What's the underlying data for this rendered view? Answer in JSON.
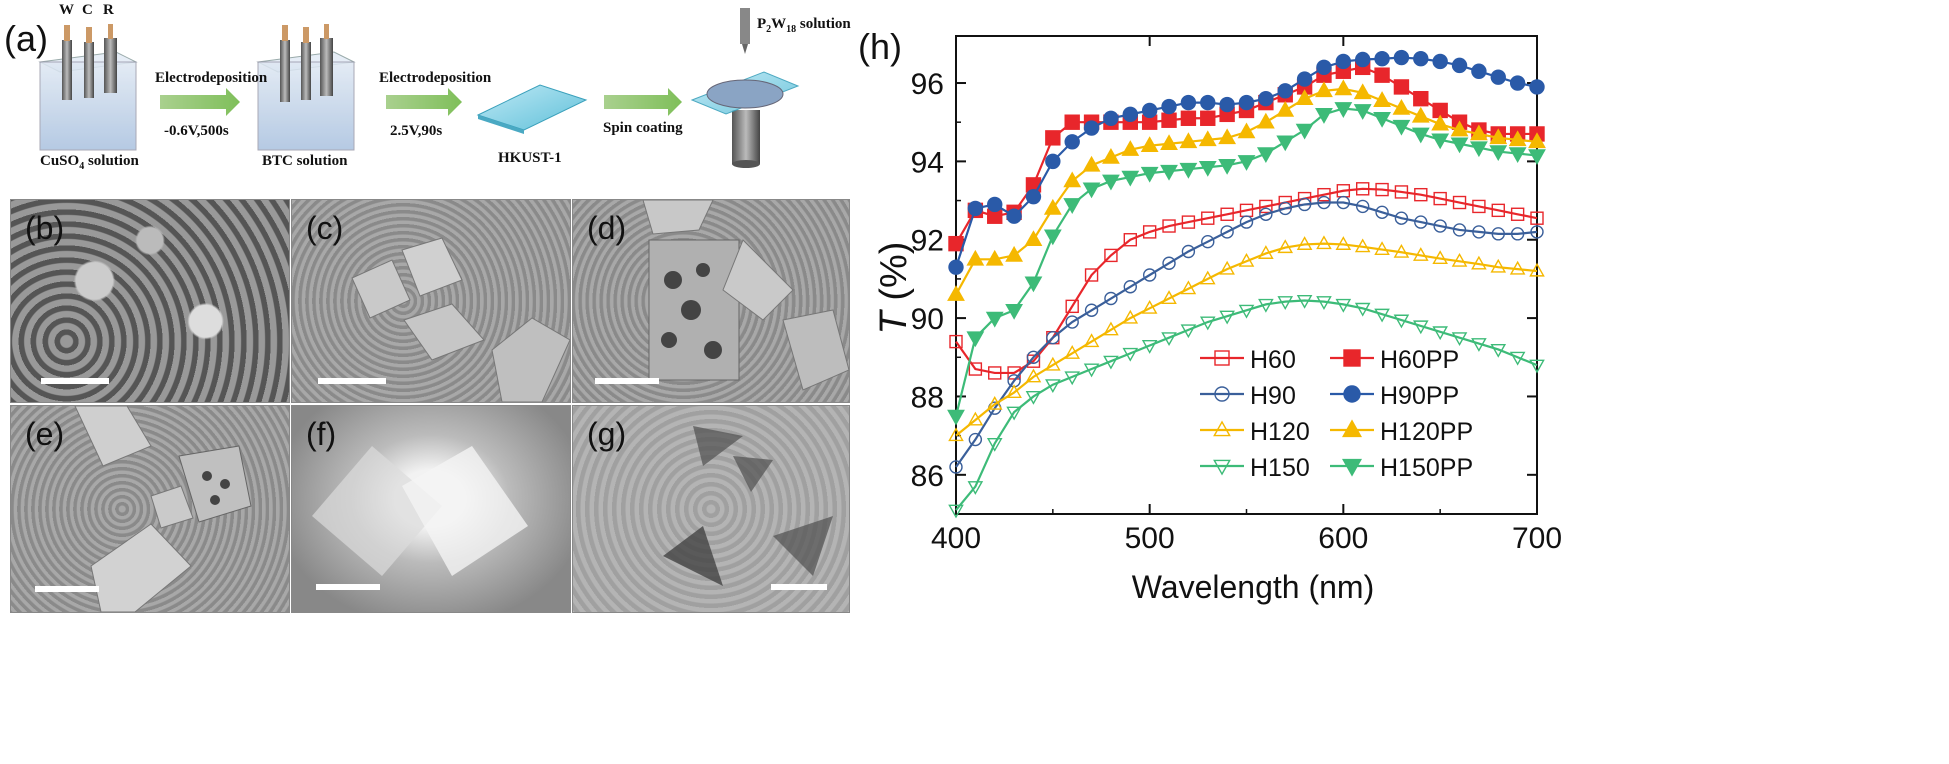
{
  "figure": {
    "panel_a": {
      "label": "(a)",
      "electrodes": [
        "W",
        "C",
        "R"
      ],
      "steps": [
        {
          "label": "CuSO",
          "sub": "4",
          "suffix": " solution"
        },
        {
          "label": "Electrodeposition",
          "cond": "-0.6V,500s"
        },
        {
          "label": "BTC solution"
        },
        {
          "label": "Electrodeposition",
          "cond": "2.5V,90s"
        },
        {
          "label": "HKUST-1"
        },
        {
          "label": "Spin coating"
        }
      ],
      "pw": {
        "p": "P",
        "sub1": "2",
        "w": "W",
        "sub2": "18",
        "suffix": " solution"
      }
    },
    "sem_panels": [
      {
        "label": "(b)"
      },
      {
        "label": "(c)"
      },
      {
        "label": "(d)"
      },
      {
        "label": "(e)"
      },
      {
        "label": "(f)"
      },
      {
        "label": "(g)"
      }
    ],
    "panel_h_label": "(h)"
  },
  "chart_data": {
    "type": "line",
    "xlabel": "Wavelength (nm)",
    "ylabel_italic": "T",
    "ylabel_unit": " (%)",
    "xlim": [
      400,
      700
    ],
    "ylim": [
      85,
      97.2
    ],
    "xticks": [
      400,
      500,
      600,
      700
    ],
    "yticks": [
      86,
      88,
      90,
      92,
      94,
      96
    ],
    "legend_position": "bottom-right",
    "series": [
      {
        "name": "H60",
        "color": "#e8262b",
        "marker": "square",
        "filled": false,
        "x": [
          400,
          410,
          420,
          430,
          440,
          450,
          460,
          470,
          480,
          490,
          500,
          510,
          520,
          530,
          540,
          550,
          560,
          570,
          580,
          590,
          600,
          610,
          620,
          630,
          640,
          650,
          660,
          670,
          680,
          690,
          700
        ],
        "y": [
          89.4,
          88.7,
          88.6,
          88.6,
          88.9,
          89.5,
          90.3,
          91.1,
          91.6,
          92.0,
          92.2,
          92.35,
          92.45,
          92.55,
          92.65,
          92.75,
          92.85,
          92.95,
          93.05,
          93.15,
          93.25,
          93.3,
          93.28,
          93.22,
          93.15,
          93.05,
          92.95,
          92.85,
          92.75,
          92.65,
          92.55
        ]
      },
      {
        "name": "H90",
        "color": "#3a5f9a",
        "marker": "circle",
        "filled": false,
        "x": [
          400,
          410,
          420,
          430,
          440,
          450,
          460,
          470,
          480,
          490,
          500,
          510,
          520,
          530,
          540,
          550,
          560,
          570,
          580,
          590,
          600,
          610,
          620,
          630,
          640,
          650,
          660,
          670,
          680,
          690,
          700
        ],
        "y": [
          86.2,
          86.9,
          87.7,
          88.4,
          89.0,
          89.5,
          89.9,
          90.2,
          90.5,
          90.8,
          91.1,
          91.4,
          91.7,
          91.95,
          92.2,
          92.45,
          92.65,
          92.8,
          92.9,
          92.95,
          92.95,
          92.85,
          92.7,
          92.55,
          92.45,
          92.35,
          92.25,
          92.2,
          92.15,
          92.15,
          92.2
        ]
      },
      {
        "name": "H120",
        "color": "#f5b800",
        "marker": "triangle-up",
        "filled": false,
        "x": [
          400,
          410,
          420,
          430,
          440,
          450,
          460,
          470,
          480,
          490,
          500,
          510,
          520,
          530,
          540,
          550,
          560,
          570,
          580,
          590,
          600,
          610,
          620,
          630,
          640,
          650,
          660,
          670,
          680,
          690,
          700
        ],
        "y": [
          87.0,
          87.4,
          87.8,
          88.1,
          88.5,
          88.8,
          89.1,
          89.4,
          89.7,
          90.0,
          90.25,
          90.5,
          90.75,
          91.0,
          91.25,
          91.45,
          91.65,
          91.8,
          91.88,
          91.9,
          91.88,
          91.82,
          91.75,
          91.68,
          91.6,
          91.52,
          91.45,
          91.38,
          91.3,
          91.25,
          91.2
        ]
      },
      {
        "name": "H150",
        "color": "#3dbb78",
        "marker": "triangle-down",
        "filled": false,
        "x": [
          400,
          410,
          420,
          430,
          440,
          450,
          460,
          470,
          480,
          490,
          500,
          510,
          520,
          530,
          540,
          550,
          560,
          570,
          580,
          590,
          600,
          610,
          620,
          630,
          640,
          650,
          660,
          670,
          680,
          690,
          700
        ],
        "y": [
          85.1,
          85.7,
          86.8,
          87.6,
          88.0,
          88.3,
          88.5,
          88.7,
          88.9,
          89.1,
          89.3,
          89.5,
          89.7,
          89.9,
          90.05,
          90.2,
          90.35,
          90.42,
          90.45,
          90.42,
          90.35,
          90.25,
          90.1,
          89.95,
          89.8,
          89.65,
          89.5,
          89.35,
          89.2,
          89.0,
          88.8
        ]
      },
      {
        "name": "H60PP",
        "color": "#e8262b",
        "marker": "square",
        "filled": true,
        "x": [
          400,
          410,
          420,
          430,
          440,
          450,
          460,
          470,
          480,
          490,
          500,
          510,
          520,
          530,
          540,
          550,
          560,
          570,
          580,
          590,
          600,
          610,
          620,
          630,
          640,
          650,
          660,
          670,
          680,
          690,
          700
        ],
        "y": [
          91.9,
          92.75,
          92.6,
          92.7,
          93.4,
          94.6,
          95.0,
          95.0,
          95.0,
          95.0,
          95.0,
          95.05,
          95.1,
          95.1,
          95.2,
          95.3,
          95.5,
          95.7,
          95.9,
          96.2,
          96.3,
          96.4,
          96.2,
          95.9,
          95.6,
          95.3,
          95.0,
          94.8,
          94.7,
          94.7,
          94.7
        ]
      },
      {
        "name": "H90PP",
        "color": "#2a5aa8",
        "marker": "circle",
        "filled": true,
        "x": [
          400,
          410,
          420,
          430,
          440,
          450,
          460,
          470,
          480,
          490,
          500,
          510,
          520,
          530,
          540,
          550,
          560,
          570,
          580,
          590,
          600,
          610,
          620,
          630,
          640,
          650,
          660,
          670,
          680,
          690,
          700
        ],
        "y": [
          91.3,
          92.8,
          92.9,
          92.6,
          93.1,
          94.0,
          94.5,
          94.85,
          95.1,
          95.2,
          95.3,
          95.4,
          95.5,
          95.5,
          95.45,
          95.5,
          95.6,
          95.8,
          96.1,
          96.4,
          96.55,
          96.6,
          96.62,
          96.65,
          96.62,
          96.55,
          96.45,
          96.3,
          96.15,
          96.0,
          95.9
        ]
      },
      {
        "name": "H120PP",
        "color": "#f5b800",
        "marker": "triangle-up",
        "filled": true,
        "x": [
          400,
          410,
          420,
          430,
          440,
          450,
          460,
          470,
          480,
          490,
          500,
          510,
          520,
          530,
          540,
          550,
          560,
          570,
          580,
          590,
          600,
          610,
          620,
          630,
          640,
          650,
          660,
          670,
          680,
          690,
          700
        ],
        "y": [
          90.6,
          91.5,
          91.5,
          91.6,
          92.0,
          92.8,
          93.5,
          93.9,
          94.1,
          94.3,
          94.4,
          94.45,
          94.5,
          94.55,
          94.6,
          94.75,
          95.0,
          95.3,
          95.6,
          95.8,
          95.85,
          95.75,
          95.55,
          95.35,
          95.15,
          94.95,
          94.8,
          94.7,
          94.6,
          94.55,
          94.5
        ]
      },
      {
        "name": "H150PP",
        "color": "#3dbb78",
        "marker": "triangle-down",
        "filled": true,
        "x": [
          400,
          410,
          420,
          430,
          440,
          450,
          460,
          470,
          480,
          490,
          500,
          510,
          520,
          530,
          540,
          550,
          560,
          570,
          580,
          590,
          600,
          610,
          620,
          630,
          640,
          650,
          660,
          670,
          680,
          690,
          700
        ],
        "y": [
          87.5,
          89.5,
          90.0,
          90.2,
          90.9,
          92.1,
          92.9,
          93.3,
          93.5,
          93.6,
          93.7,
          93.75,
          93.8,
          93.85,
          93.9,
          94.0,
          94.2,
          94.5,
          94.8,
          95.2,
          95.35,
          95.3,
          95.1,
          94.9,
          94.7,
          94.55,
          94.45,
          94.35,
          94.25,
          94.2,
          94.15
        ]
      }
    ]
  }
}
